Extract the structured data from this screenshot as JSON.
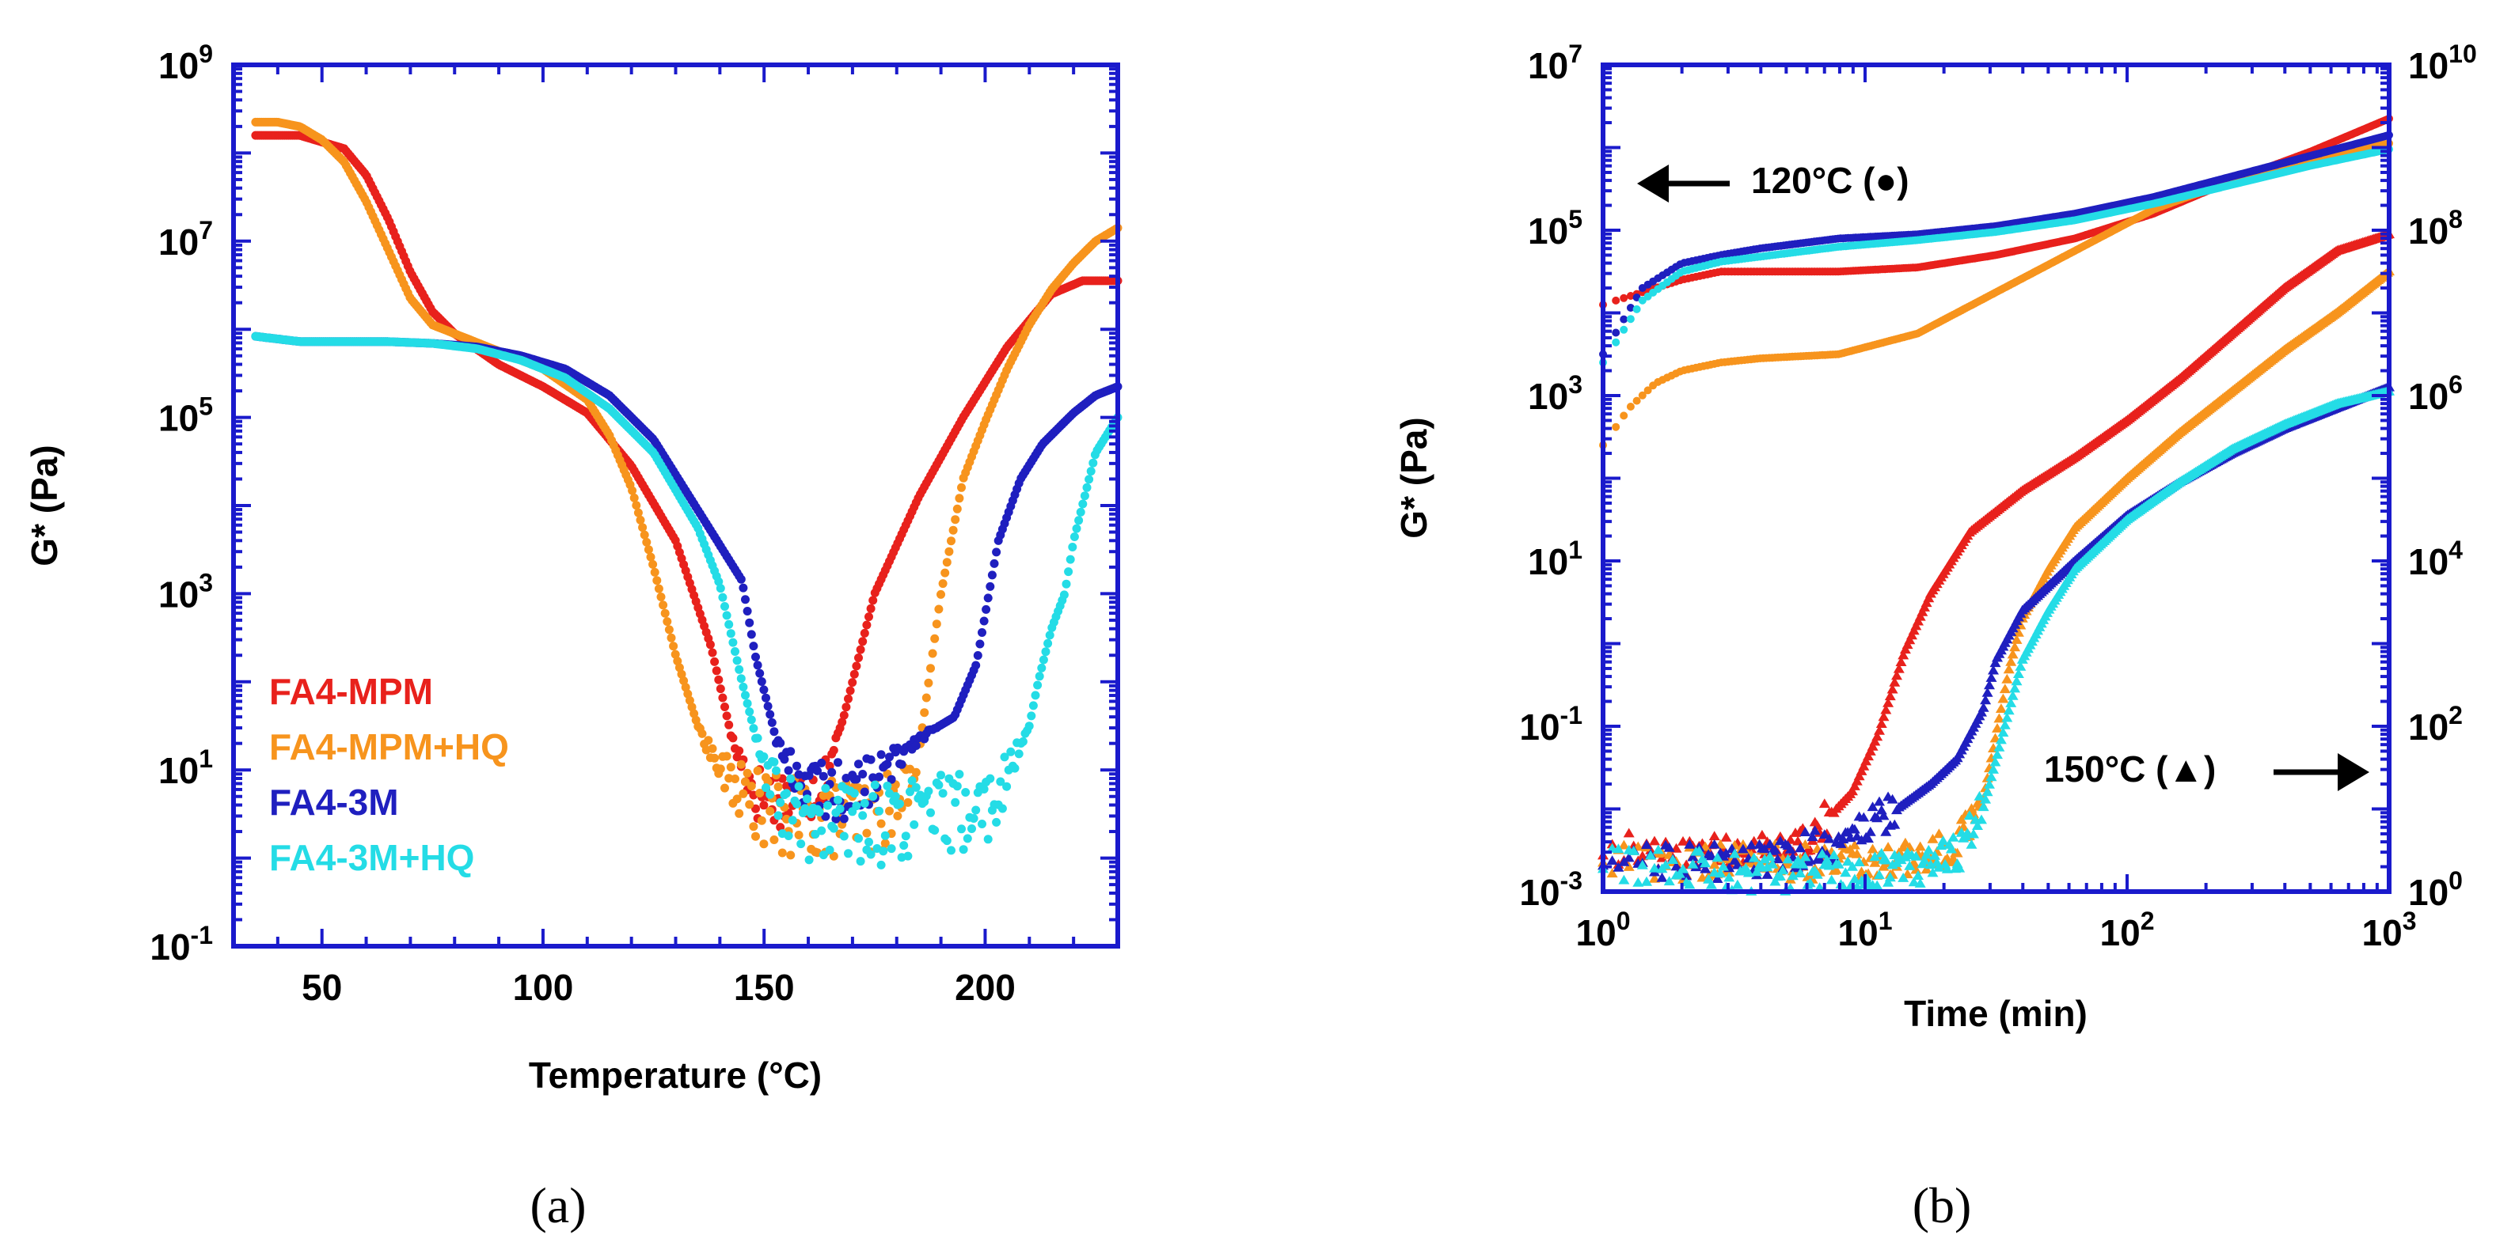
{
  "colors": {
    "axis": "#1a1acc",
    "FA4-MPM": "#e8211c",
    "FA4-MPM+HQ": "#f7941d",
    "FA4-3M": "#1f1fbf",
    "FA4-3M+HQ": "#24dce6"
  },
  "chart_data": [
    {
      "panel_label": "(a)",
      "type": "scatter",
      "title": "",
      "xlabel": "Temperature (°C)",
      "ylabel": "G* (Pa)",
      "xlim": [
        30,
        230
      ],
      "ylim_log10": [
        -1,
        9
      ],
      "yscale": "log",
      "x_ticks": [
        50,
        100,
        150,
        200
      ],
      "x_tick_labels": [
        "50",
        "100",
        "150",
        "200"
      ],
      "y_tick_exponents": [
        -1,
        1,
        3,
        5,
        7,
        9
      ],
      "y_tick_labels": [
        {
          "base": "10",
          "exp": "-1"
        },
        {
          "base": "10",
          "exp": "1"
        },
        {
          "base": "10",
          "exp": "3"
        },
        {
          "base": "10",
          "exp": "5"
        },
        {
          "base": "10",
          "exp": "7"
        },
        {
          "base": "10",
          "exp": "9"
        }
      ],
      "legend": {
        "location": "lower-left",
        "entries": [
          "FA4-MPM",
          "FA4-MPM+HQ",
          "FA4-3M",
          "FA4-3M+HQ"
        ]
      },
      "series": [
        {
          "name": "FA4-MPM",
          "x": [
            35,
            45,
            55,
            60,
            65,
            70,
            75,
            80,
            90,
            100,
            110,
            120,
            130,
            138,
            143,
            148,
            153,
            158,
            163,
            168,
            175,
            185,
            195,
            205,
            215,
            222,
            230
          ],
          "log10_y": [
            8.2,
            8.2,
            8.05,
            7.75,
            7.25,
            6.65,
            6.2,
            5.95,
            5.6,
            5.35,
            5.05,
            4.45,
            3.6,
            2.4,
            1.3,
            0.75,
            0.7,
            0.72,
            0.8,
            1.6,
            3.0,
            4.1,
            5.0,
            5.8,
            6.4,
            6.55,
            6.55
          ]
        },
        {
          "name": "FA4-MPM+HQ",
          "x": [
            35,
            40,
            45,
            50,
            55,
            60,
            65,
            70,
            75,
            80,
            90,
            100,
            110,
            115,
            120,
            125,
            130,
            135,
            140,
            145,
            150,
            155,
            160,
            165,
            170,
            175,
            180,
            185,
            190,
            195,
            200,
            205,
            210,
            215,
            220,
            225,
            230
          ],
          "log10_y": [
            8.35,
            8.35,
            8.3,
            8.15,
            7.9,
            7.45,
            6.9,
            6.35,
            6.05,
            5.95,
            5.75,
            5.55,
            5.2,
            4.8,
            4.2,
            3.3,
            2.3,
            1.5,
            1.0,
            0.75,
            0.55,
            0.45,
            0.45,
            0.45,
            0.5,
            0.5,
            0.55,
            1.2,
            3.0,
            4.3,
            4.95,
            5.55,
            6.05,
            6.45,
            6.75,
            7.0,
            7.15
          ]
        },
        {
          "name": "FA4-3M",
          "x": [
            35,
            45,
            55,
            65,
            75,
            85,
            95,
            105,
            115,
            125,
            135,
            145,
            148,
            150,
            153,
            157,
            162,
            167,
            172,
            178,
            183,
            188,
            193,
            198,
            203,
            208,
            213,
            220,
            225,
            230
          ],
          "log10_y": [
            5.92,
            5.86,
            5.86,
            5.86,
            5.84,
            5.8,
            5.7,
            5.55,
            5.25,
            4.75,
            3.95,
            3.15,
            2.3,
            1.9,
            1.3,
            0.95,
            0.8,
            0.75,
            0.82,
            1.0,
            1.3,
            1.45,
            1.6,
            2.2,
            3.6,
            4.3,
            4.7,
            5.05,
            5.25,
            5.35
          ]
        },
        {
          "name": "FA4-3M+HQ",
          "x": [
            35,
            45,
            55,
            65,
            75,
            85,
            95,
            105,
            115,
            125,
            135,
            140,
            145,
            148,
            150,
            155,
            160,
            165,
            170,
            175,
            180,
            185,
            190,
            195,
            200,
            205,
            210,
            212,
            215,
            218,
            220,
            225,
            230
          ],
          "log10_y": [
            5.92,
            5.86,
            5.86,
            5.86,
            5.84,
            5.78,
            5.65,
            5.45,
            5.1,
            4.6,
            3.75,
            3.1,
            2.0,
            1.4,
            0.95,
            0.55,
            0.4,
            0.38,
            0.42,
            0.4,
            0.42,
            0.45,
            0.5,
            0.52,
            0.55,
            0.9,
            1.5,
            2.0,
            2.6,
            3.0,
            3.6,
            4.6,
            5.0
          ]
        }
      ]
    },
    {
      "panel_label": "(b)",
      "type": "scatter",
      "title": "",
      "xlabel": "Time (min)",
      "ylabel": "G* (Pa)",
      "xscale": "log",
      "xlim_log10": [
        0,
        3
      ],
      "ylim_log10": [
        -3,
        7
      ],
      "y2lim_log10": [
        0,
        10
      ],
      "x_tick_labels": [
        {
          "base": "10",
          "exp": "0"
        },
        {
          "base": "10",
          "exp": "1"
        },
        {
          "base": "10",
          "exp": "2"
        },
        {
          "base": "10",
          "exp": "3"
        }
      ],
      "y_tick_labels": [
        {
          "base": "10",
          "exp": "-3"
        },
        {
          "base": "10",
          "exp": "-1"
        },
        {
          "base": "10",
          "exp": "1"
        },
        {
          "base": "10",
          "exp": "3"
        },
        {
          "base": "10",
          "exp": "5"
        },
        {
          "base": "10",
          "exp": "7"
        }
      ],
      "y2_tick_labels": [
        {
          "base": "10",
          "exp": "0"
        },
        {
          "base": "10",
          "exp": "2"
        },
        {
          "base": "10",
          "exp": "4"
        },
        {
          "base": "10",
          "exp": "6"
        },
        {
          "base": "10",
          "exp": "8"
        },
        {
          "base": "10",
          "exp": "10"
        }
      ],
      "annotations": [
        {
          "text": "120°C (●)",
          "arrow": "left",
          "axis": "left"
        },
        {
          "text": "150°C (▲)",
          "arrow": "right",
          "axis": "right"
        }
      ],
      "series_120C_left_axis": [
        {
          "name": "FA4-MPM",
          "log10_x": [
            0,
            0.15,
            0.3,
            0.45,
            0.6,
            0.9,
            1.2,
            1.5,
            1.8,
            2.1,
            2.4,
            2.7,
            3.0
          ],
          "log10_y": [
            4.1,
            4.25,
            4.4,
            4.5,
            4.5,
            4.5,
            4.55,
            4.7,
            4.9,
            5.2,
            5.6,
            5.95,
            6.35
          ]
        },
        {
          "name": "FA4-MPM+HQ",
          "log10_x": [
            0,
            0.1,
            0.2,
            0.3,
            0.45,
            0.6,
            0.9,
            1.2,
            1.5,
            1.8,
            2.1,
            2.4,
            2.7,
            3.0
          ],
          "log10_y": [
            2.4,
            2.85,
            3.15,
            3.3,
            3.4,
            3.45,
            3.5,
            3.75,
            4.25,
            4.75,
            5.25,
            5.6,
            5.85,
            6.05
          ]
        },
        {
          "name": "FA4-3M",
          "log10_x": [
            0,
            0.15,
            0.3,
            0.45,
            0.6,
            0.9,
            1.2,
            1.5,
            1.8,
            2.1,
            2.4,
            2.7,
            3.0
          ],
          "log10_y": [
            3.5,
            4.3,
            4.6,
            4.7,
            4.78,
            4.9,
            4.95,
            5.05,
            5.2,
            5.4,
            5.65,
            5.9,
            6.15
          ]
        },
        {
          "name": "FA4-3M+HQ",
          "log10_x": [
            0,
            0.15,
            0.3,
            0.45,
            0.6,
            0.9,
            1.2,
            1.5,
            1.8,
            2.1,
            2.4,
            2.7,
            3.0
          ],
          "log10_y": [
            3.4,
            4.15,
            4.5,
            4.62,
            4.68,
            4.8,
            4.88,
            4.98,
            5.12,
            5.32,
            5.55,
            5.78,
            5.98
          ]
        }
      ],
      "series_150C_right_axis": [
        {
          "name": "FA4-MPM",
          "log10_x": [
            0,
            0.3,
            0.6,
            0.8,
            0.95,
            1.05,
            1.15,
            1.25,
            1.4,
            1.6,
            1.8,
            2.0,
            2.2,
            2.4,
            2.6,
            2.8,
            3.0
          ],
          "log10_y": [
            0.5,
            0.45,
            0.5,
            0.7,
            1.2,
            1.9,
            2.9,
            3.6,
            4.35,
            4.85,
            5.25,
            5.7,
            6.2,
            6.75,
            7.3,
            7.75,
            7.95
          ]
        },
        {
          "name": "FA4-MPM+HQ",
          "log10_x": [
            0,
            0.3,
            0.6,
            0.9,
            1.2,
            1.35,
            1.45,
            1.5,
            1.55,
            1.6,
            1.7,
            1.8,
            2.0,
            2.2,
            2.4,
            2.6,
            2.8,
            3.0
          ],
          "log10_y": [
            0.4,
            0.35,
            0.35,
            0.35,
            0.4,
            0.55,
            1.1,
            1.9,
            2.7,
            3.3,
            3.9,
            4.4,
            5.0,
            5.55,
            6.05,
            6.55,
            7.0,
            7.5
          ]
        },
        {
          "name": "FA4-3M",
          "log10_x": [
            0,
            0.3,
            0.6,
            0.9,
            1.1,
            1.25,
            1.35,
            1.45,
            1.5,
            1.6,
            1.8,
            2.0,
            2.2,
            2.4,
            2.6,
            2.8,
            3.0
          ],
          "log10_y": [
            0.35,
            0.35,
            0.4,
            0.6,
            0.95,
            1.3,
            1.6,
            2.2,
            2.8,
            3.4,
            4.0,
            4.55,
            4.95,
            5.3,
            5.6,
            5.85,
            6.1
          ]
        },
        {
          "name": "FA4-3M+HQ",
          "log10_x": [
            0,
            0.3,
            0.6,
            0.9,
            1.2,
            1.35,
            1.45,
            1.5,
            1.55,
            1.6,
            1.7,
            1.8,
            2.0,
            2.2,
            2.4,
            2.6,
            2.8,
            3.0
          ],
          "log10_y": [
            0.3,
            0.3,
            0.2,
            0.25,
            0.3,
            0.45,
            1.0,
            1.6,
            2.2,
            2.8,
            3.4,
            3.9,
            4.5,
            4.95,
            5.35,
            5.65,
            5.9,
            6.05
          ]
        }
      ]
    }
  ]
}
